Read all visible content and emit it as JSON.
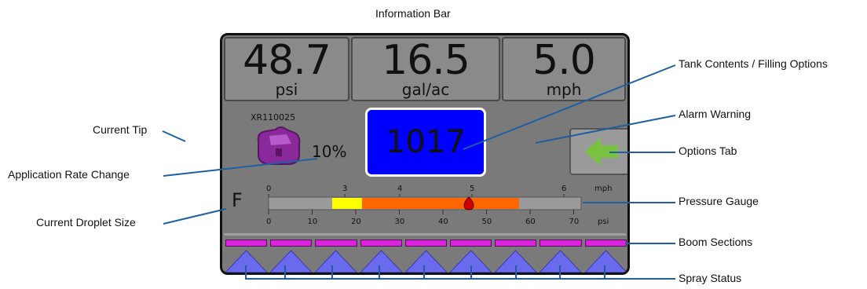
{
  "labels": {
    "information_bar": "Information Bar",
    "current_tip": "Current Tip",
    "application_rate_change": "Application Rate Change",
    "current_droplet_size": "Current Droplet Size",
    "tank_contents": "Tank Contents / Filling Options",
    "alarm_warning": "Alarm Warning",
    "options_tab": "Options Tab",
    "pressure_gauge": "Pressure Gauge",
    "boom_sections": "Boom Sections",
    "spray_status": "Spray Status"
  },
  "screen": {
    "readouts": [
      {
        "value": "48.7",
        "unit": "psi"
      },
      {
        "value": "16.5",
        "unit": "gal/ac"
      },
      {
        "value": "5.0",
        "unit": "mph"
      }
    ],
    "tip_name": "XR110025",
    "rate_change": "10%",
    "tank_value": "1017",
    "droplet_size": "F",
    "gauge": {
      "mph_label": "mph",
      "psi_label": "psi",
      "mph_ticks": [
        "0",
        "3",
        "4",
        "5",
        "6"
      ],
      "psi_ticks": [
        "0",
        "10",
        "20",
        "30",
        "40",
        "50",
        "60",
        "70"
      ]
    },
    "boom_section_count": 9,
    "colors": {
      "tank_bg": "#0000ff",
      "gauge_yellow": "#ffff00",
      "gauge_orange": "#ff6600",
      "boom_magenta": "#dd22dd",
      "nozzle_purple": "#8a2a9a",
      "arrow_green": "#7ac142",
      "leader_blue": "#1f5fa0"
    }
  }
}
